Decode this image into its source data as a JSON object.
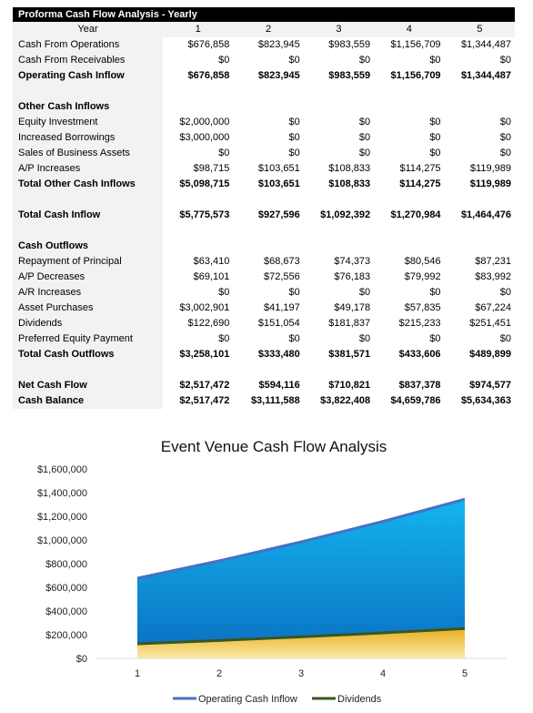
{
  "table": {
    "title": "Proforma Cash Flow Analysis - Yearly",
    "header_label": "Year",
    "years": [
      "1",
      "2",
      "3",
      "4",
      "5"
    ],
    "rows": [
      {
        "label": "Cash From Operations",
        "values": [
          "$676,858",
          "$823,945",
          "$983,559",
          "$1,156,709",
          "$1,344,487"
        ],
        "bold": false
      },
      {
        "label": "Cash From Receivables",
        "values": [
          "$0",
          "$0",
          "$0",
          "$0",
          "$0"
        ],
        "bold": false
      },
      {
        "label": "Operating Cash Inflow",
        "values": [
          "$676,858",
          "$823,945",
          "$983,559",
          "$1,156,709",
          "$1,344,487"
        ],
        "bold": true
      },
      {
        "label": "",
        "values": [
          "",
          "",
          "",
          "",
          ""
        ],
        "bold": false
      },
      {
        "label": "Other Cash Inflows",
        "values": [
          "",
          "",
          "",
          "",
          ""
        ],
        "bold": true
      },
      {
        "label": "Equity Investment",
        "values": [
          "$2,000,000",
          "$0",
          "$0",
          "$0",
          "$0"
        ],
        "bold": false
      },
      {
        "label": "Increased Borrowings",
        "values": [
          "$3,000,000",
          "$0",
          "$0",
          "$0",
          "$0"
        ],
        "bold": false
      },
      {
        "label": "Sales of Business Assets",
        "values": [
          "$0",
          "$0",
          "$0",
          "$0",
          "$0"
        ],
        "bold": false
      },
      {
        "label": "A/P Increases",
        "values": [
          "$98,715",
          "$103,651",
          "$108,833",
          "$114,275",
          "$119,989"
        ],
        "bold": false
      },
      {
        "label": "Total Other Cash Inflows",
        "values": [
          "$5,098,715",
          "$103,651",
          "$108,833",
          "$114,275",
          "$119,989"
        ],
        "bold": true
      },
      {
        "label": "",
        "values": [
          "",
          "",
          "",
          "",
          ""
        ],
        "bold": false
      },
      {
        "label": "Total Cash Inflow",
        "values": [
          "$5,775,573",
          "$927,596",
          "$1,092,392",
          "$1,270,984",
          "$1,464,476"
        ],
        "bold": true
      },
      {
        "label": "",
        "values": [
          "",
          "",
          "",
          "",
          ""
        ],
        "bold": false
      },
      {
        "label": "Cash Outflows",
        "values": [
          "",
          "",
          "",
          "",
          ""
        ],
        "bold": true
      },
      {
        "label": "Repayment of Principal",
        "values": [
          "$63,410",
          "$68,673",
          "$74,373",
          "$80,546",
          "$87,231"
        ],
        "bold": false
      },
      {
        "label": "A/P Decreases",
        "values": [
          "$69,101",
          "$72,556",
          "$76,183",
          "$79,992",
          "$83,992"
        ],
        "bold": false
      },
      {
        "label": "A/R Increases",
        "values": [
          "$0",
          "$0",
          "$0",
          "$0",
          "$0"
        ],
        "bold": false
      },
      {
        "label": "Asset Purchases",
        "values": [
          "$3,002,901",
          "$41,197",
          "$49,178",
          "$57,835",
          "$67,224"
        ],
        "bold": false
      },
      {
        "label": "Dividends",
        "values": [
          "$122,690",
          "$151,054",
          "$181,837",
          "$215,233",
          "$251,451"
        ],
        "bold": false
      },
      {
        "label": "Preferred Equity Payment",
        "values": [
          "$0",
          "$0",
          "$0",
          "$0",
          "$0"
        ],
        "bold": false
      },
      {
        "label": "Total Cash Outflows",
        "values": [
          "$3,258,101",
          "$333,480",
          "$381,571",
          "$433,606",
          "$489,899"
        ],
        "bold": true
      },
      {
        "label": "",
        "values": [
          "",
          "",
          "",
          "",
          ""
        ],
        "bold": false
      },
      {
        "label": "Net Cash Flow",
        "values": [
          "$2,517,472",
          "$594,116",
          "$710,821",
          "$837,378",
          "$974,577"
        ],
        "bold": true
      },
      {
        "label": "Cash Balance",
        "values": [
          "$2,517,472",
          "$3,111,588",
          "$3,822,408",
          "$4,659,786",
          "$5,634,363"
        ],
        "bold": true
      }
    ]
  },
  "chart_data": {
    "type": "area",
    "title": "Event Venue Cash Flow Analysis",
    "x": [
      1,
      2,
      3,
      4,
      5
    ],
    "series": [
      {
        "name": "Operating Cash Inflow",
        "values": [
          676858,
          823945,
          983559,
          1156709,
          1344487
        ],
        "color": "#1ea7e8",
        "line_color": "#4472c4"
      },
      {
        "name": "Dividends",
        "values": [
          122690,
          151054,
          181837,
          215233,
          251451
        ],
        "color": "#f2c12e",
        "line_color": "#375623"
      }
    ],
    "yticks": [
      "$0",
      "$200,000",
      "$400,000",
      "$600,000",
      "$800,000",
      "$1,000,000",
      "$1,200,000",
      "$1,400,000",
      "$1,600,000"
    ],
    "ylim": [
      0,
      1600000
    ],
    "grid": false,
    "legend_position": "bottom"
  }
}
